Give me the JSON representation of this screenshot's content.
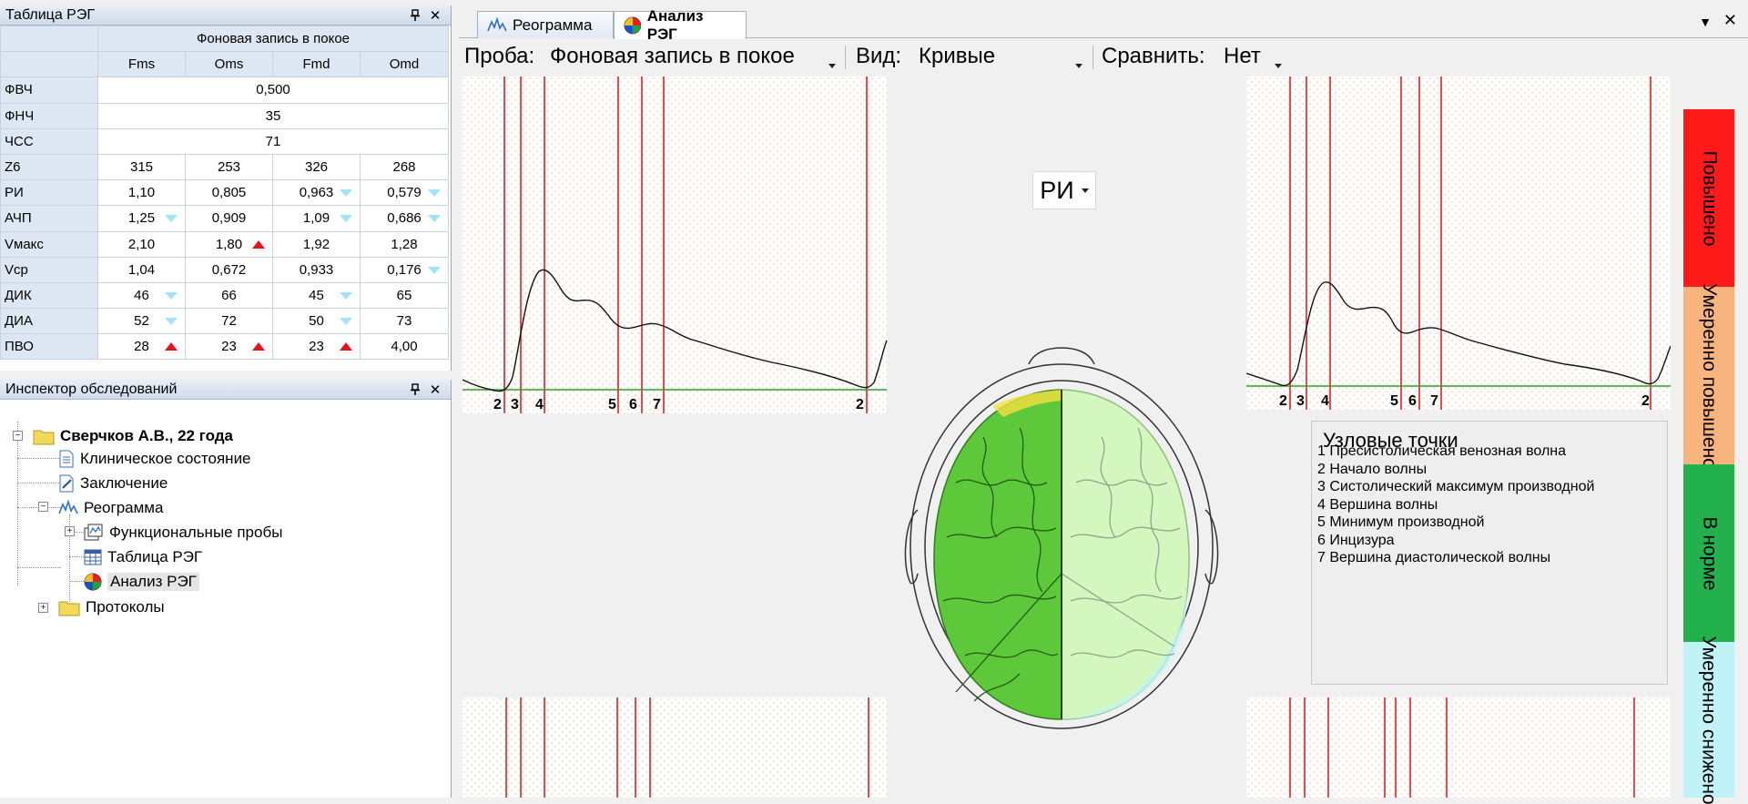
{
  "reg_table_panel": {
    "title": "Таблица РЭГ",
    "group_header": "Фоновая запись в покое",
    "columns": [
      "Fms",
      "Oms",
      "Fmd",
      "Omd"
    ],
    "merged_rows": [
      {
        "name": "ФВЧ",
        "value": "0,500"
      },
      {
        "name": "ФНЧ",
        "value": "35"
      },
      {
        "name": "ЧСС",
        "value": "71"
      }
    ],
    "rows": [
      {
        "name": "Z6",
        "cells": [
          {
            "v": "315",
            "m": ""
          },
          {
            "v": "253",
            "m": ""
          },
          {
            "v": "326",
            "m": ""
          },
          {
            "v": "268",
            "m": ""
          }
        ]
      },
      {
        "name": "РИ",
        "cells": [
          {
            "v": "1,10",
            "m": ""
          },
          {
            "v": "0,805",
            "m": ""
          },
          {
            "v": "0,963",
            "m": "down"
          },
          {
            "v": "0,579",
            "m": "down"
          }
        ]
      },
      {
        "name": "АЧП",
        "cells": [
          {
            "v": "1,25",
            "m": "down"
          },
          {
            "v": "0,909",
            "m": ""
          },
          {
            "v": "1,09",
            "m": "down"
          },
          {
            "v": "0,686",
            "m": "down"
          }
        ]
      },
      {
        "name": "Vмакс",
        "cells": [
          {
            "v": "2,10",
            "m": ""
          },
          {
            "v": "1,80",
            "m": "up"
          },
          {
            "v": "1,92",
            "m": ""
          },
          {
            "v": "1,28",
            "m": ""
          }
        ]
      },
      {
        "name": "Vср",
        "cells": [
          {
            "v": "1,04",
            "m": ""
          },
          {
            "v": "0,672",
            "m": ""
          },
          {
            "v": "0,933",
            "m": ""
          },
          {
            "v": "0,176",
            "m": "down"
          }
        ]
      },
      {
        "name": "ДИК",
        "cells": [
          {
            "v": "46",
            "m": "down"
          },
          {
            "v": "66",
            "m": ""
          },
          {
            "v": "45",
            "m": "down"
          },
          {
            "v": "65",
            "m": ""
          }
        ]
      },
      {
        "name": "ДИА",
        "cells": [
          {
            "v": "52",
            "m": "down"
          },
          {
            "v": "72",
            "m": ""
          },
          {
            "v": "50",
            "m": "down"
          },
          {
            "v": "73",
            "m": ""
          }
        ]
      },
      {
        "name": "ПВО",
        "cells": [
          {
            "v": "28",
            "m": "up"
          },
          {
            "v": "23",
            "m": "up"
          },
          {
            "v": "23",
            "m": "up"
          },
          {
            "v": "4,00",
            "m": ""
          }
        ]
      }
    ]
  },
  "inspector_panel": {
    "title": "Инспектор обследований",
    "patient": "Сверчков А.В., 22 года",
    "items": {
      "clinical": "Клиническое состояние",
      "conclusion": "Заключение",
      "rheogram": "Реограмма",
      "functional": "Функциональные пробы",
      "reg_table": "Таблица РЭГ",
      "reg_analysis": "Анализ РЭГ",
      "protocols": "Протоколы"
    }
  },
  "tabs": {
    "rheogram": "Реограмма",
    "analysis": "Анализ РЭГ"
  },
  "toolbar": {
    "sample_label": "Проба:",
    "sample_value": "Фоновая запись в покое",
    "view_label": "Вид:",
    "view_value": "Кривые",
    "compare_label": "Сравнить:",
    "compare_value": "Нет"
  },
  "ri_selector": "РИ",
  "node_points": {
    "title": "Узловые точки",
    "items": [
      "1 Пресистолическая венозная волна",
      "2 Начало волны",
      "3 Систолический максимум производной",
      "4 Вершина волны",
      "5 Минимум производной",
      "6 Инцизура",
      "7 Вершина диастолической волны"
    ]
  },
  "scale_legend": [
    {
      "label": "Повышено",
      "color": "#ff1a1a"
    },
    {
      "label": "Умеренно повышено",
      "color": "#f8b47c"
    },
    {
      "label": "В норме",
      "color": "#22b14c"
    },
    {
      "label": "Умеренно снижено",
      "color": "#bff3f8"
    }
  ],
  "colors": {
    "left_brain": "#5cc83a",
    "right_brain": "#d4f7c0",
    "marker_line": "#e01010",
    "baseline": "#2aa02a"
  },
  "curve_left": {
    "marker_labels": [
      "2",
      "3",
      "4",
      "5",
      "6",
      "7",
      "2"
    ]
  },
  "curve_right": {
    "marker_labels": [
      "2",
      "3",
      "4",
      "5",
      "6",
      "7",
      "2"
    ]
  }
}
